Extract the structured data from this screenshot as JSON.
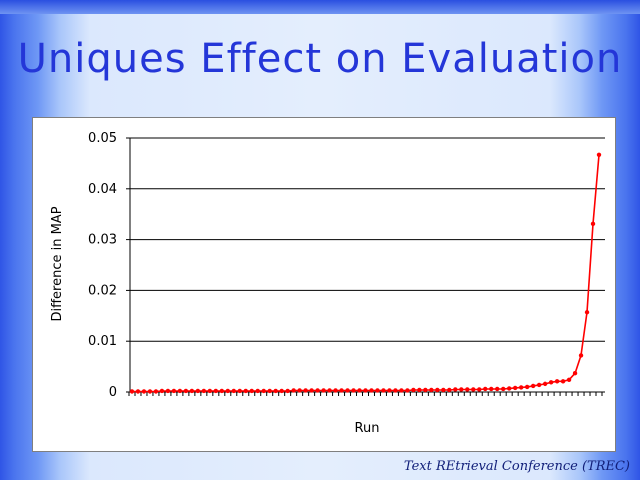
{
  "slide": {
    "title": "Uniques Effect on Evaluation",
    "footer": "Text REtrieval Conference (TREC)"
  },
  "colors": {
    "title": "#2436d8",
    "series": "#ff0000",
    "footer": "#12207a"
  },
  "chart_data": {
    "type": "line",
    "title": "",
    "xlabel": "Run",
    "ylabel": "Difference in MAP",
    "ylim": [
      0,
      0.05
    ],
    "yticks": [
      "0",
      "0.01",
      "0.02",
      "0.03",
      "0.04",
      "0.05"
    ],
    "grid": true,
    "legend": "none",
    "series": [
      {
        "values": [
          0.0001,
          0.0001,
          0.0001,
          0.0001,
          0.0001,
          0.0002,
          0.0002,
          0.0002,
          0.0002,
          0.0002,
          0.0002,
          0.0002,
          0.0002,
          0.0002,
          0.0002,
          0.0002,
          0.0002,
          0.0002,
          0.0002,
          0.0002,
          0.0002,
          0.0002,
          0.0002,
          0.0002,
          0.0002,
          0.0002,
          0.0002,
          0.0003,
          0.0003,
          0.0003,
          0.0003,
          0.0003,
          0.0003,
          0.0003,
          0.0003,
          0.0003,
          0.0003,
          0.0003,
          0.0003,
          0.0003,
          0.0003,
          0.0003,
          0.0003,
          0.0003,
          0.0003,
          0.0003,
          0.0003,
          0.0004,
          0.0004,
          0.0004,
          0.0004,
          0.0004,
          0.0004,
          0.0004,
          0.0005,
          0.0005,
          0.0005,
          0.0005,
          0.0005,
          0.0006,
          0.0006,
          0.0006,
          0.0006,
          0.0007,
          0.0008,
          0.0009,
          0.001,
          0.0012,
          0.0014,
          0.0016,
          0.0019,
          0.0021,
          0.0021,
          0.0024,
          0.0037,
          0.0072,
          0.0157,
          0.0331,
          0.0467
        ]
      }
    ]
  }
}
